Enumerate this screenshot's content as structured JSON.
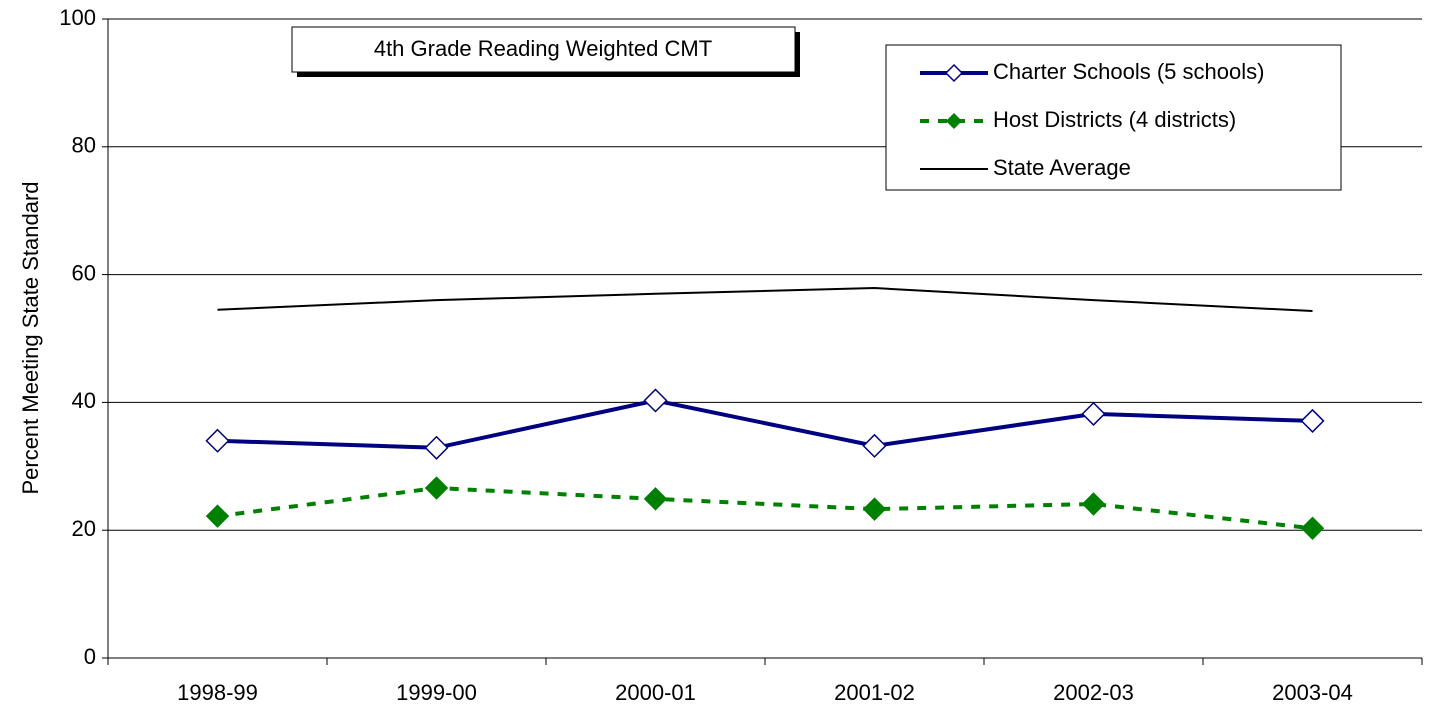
{
  "chart_data": {
    "type": "line",
    "title": "4th Grade Reading Weighted CMT",
    "y_label": "Percent Meeting State Standard",
    "categories": [
      "1998-99",
      "1999-00",
      "2000-01",
      "2001-02",
      "2002-03",
      "2003-04"
    ],
    "series": [
      {
        "name": "Charter Schools (5 schools)",
        "color": "#000080",
        "marker": "open-diamond",
        "dash": false,
        "values": [
          34,
          32.9,
          40.3,
          33.2,
          38.2,
          37.1
        ]
      },
      {
        "name": "Host Districts (4 districts)",
        "color": "#008000",
        "marker": "filled-diamond",
        "dash": true,
        "values": [
          22.2,
          26.6,
          24.9,
          23.3,
          24.1,
          20.3
        ]
      },
      {
        "name": "State Average",
        "color": "#000000",
        "marker": "none",
        "dash": false,
        "values": [
          54.5,
          56.0,
          57.0,
          57.9,
          56.0,
          54.3
        ]
      }
    ],
    "ylim": [
      0,
      100
    ],
    "yticks": [
      0,
      20,
      40,
      60,
      80,
      100
    ],
    "grid": true,
    "legend": "top-right"
  }
}
